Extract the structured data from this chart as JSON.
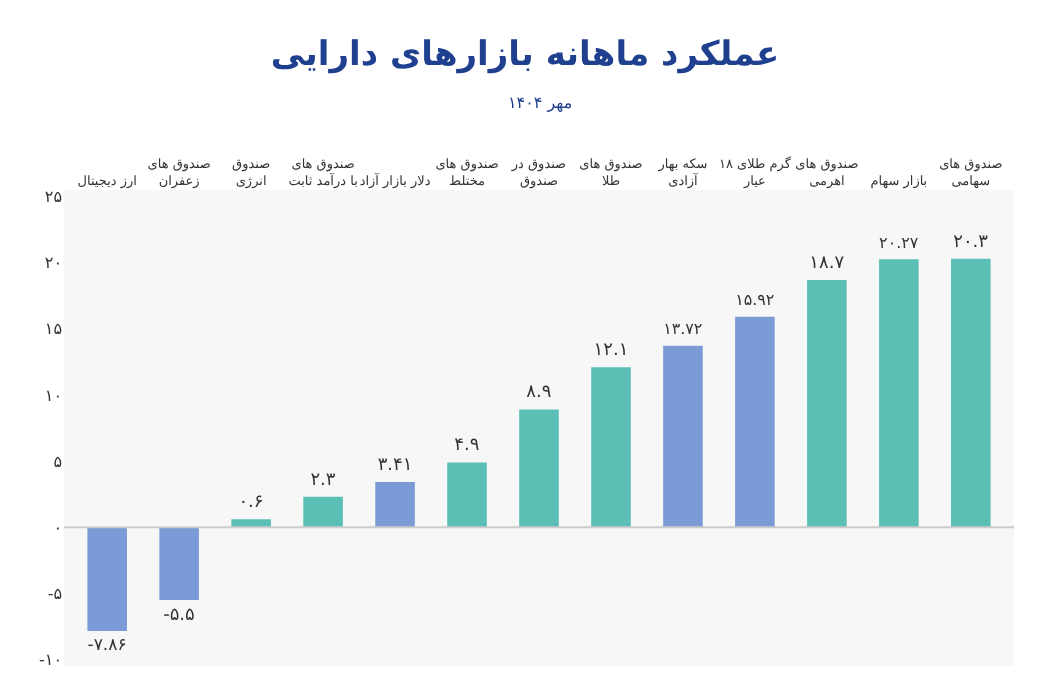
{
  "chart_data": {
    "type": "bar",
    "title": "عملکرد ماهانه بازارهای دارایی",
    "subtitle": "مهر ۱۴۰۴",
    "categories": [
      "ارز دیجیتال",
      "صندوق های\nزعفران",
      "صندوق\nانرژی",
      "صندوق های\nبا درآمد ثابت",
      "دلار بازار آزاد",
      "صندوق های\nمختلط",
      "صندوق در\nصندوق",
      "صندوق های\nطلا",
      "سکه بهار\nآزادی",
      "گرم طلای ۱۸\nعیار",
      "صندوق های\nاهرمی",
      "بازار سهام",
      "صندوق های\nسهامی"
    ],
    "values": [
      -7.86,
      -5.5,
      0.6,
      2.3,
      3.41,
      4.9,
      8.9,
      12.1,
      13.72,
      15.92,
      18.7,
      20.27,
      20.3
    ],
    "value_labels": [
      "-۷.۸۶",
      "-۵.۵",
      "۰.۶",
      "۲.۳",
      "۳.۴۱",
      "۴.۹",
      "۸.۹",
      "۱۲.۱",
      "۱۳.۷۲",
      "۱۵.۹۲",
      "۱۸.۷",
      "۲۰.۲۷",
      "۲۰.۳"
    ],
    "colors": [
      "#7b9bd6",
      "#7b9bd6",
      "#5bbfb5",
      "#5bbfb5",
      "#7b9bd6",
      "#5bbfb5",
      "#5bbfb5",
      "#5bbfb5",
      "#7b9bd6",
      "#7b9bd6",
      "#5bbfb5",
      "#5bbfb5",
      "#5bbfb5"
    ],
    "ylim": [
      -10.5,
      25.5
    ],
    "yticks": [
      {
        "value": -10,
        "label": "-۱۰"
      },
      {
        "value": -5,
        "label": "-۵"
      },
      {
        "value": 0,
        "label": "۰"
      },
      {
        "value": 5,
        "label": "۵"
      },
      {
        "value": 10,
        "label": "۱۰"
      },
      {
        "value": 15,
        "label": "۱۵"
      },
      {
        "value": 20,
        "label": "۲۰"
      },
      {
        "value": 25,
        "label": "۲۵"
      }
    ],
    "ref_lines": [
      {
        "axis": "y",
        "value": 0,
        "color": "#cccccc"
      }
    ]
  }
}
